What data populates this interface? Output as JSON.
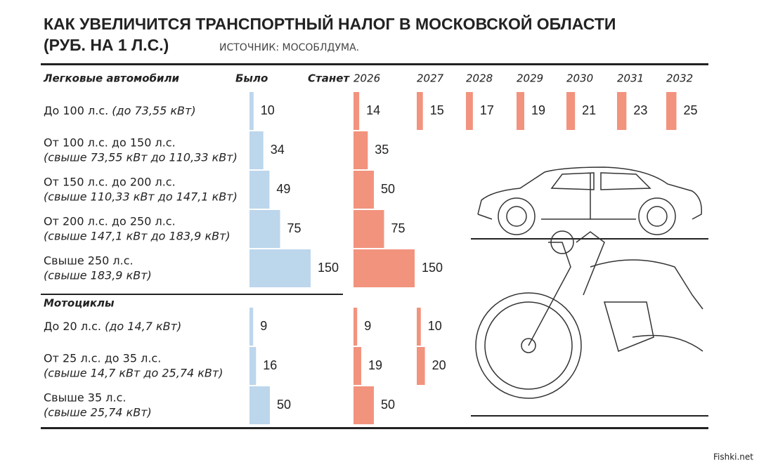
{
  "title": "КАК УВЕЛИЧИТСЯ ТРАНСПОРТНЫЙ НАЛОГ В МОСКОВСКОЙ ОБЛАСТИ",
  "subtitle": "(РУБ. НА 1 Л.С.)",
  "source": "ИСТОЧНИК: МОСОБЛДУМА.",
  "was_label": "Было",
  "will_label": "Станет",
  "years": [
    "2026",
    "2027",
    "2028",
    "2029",
    "2030",
    "2031",
    "2032"
  ],
  "groups": [
    {
      "name": "Легковые автомобили",
      "rows": [
        {
          "label": "До 100 л.с.",
          "sublabel": "(до 73,55 кВт)",
          "was": 10,
          "values": [
            14,
            15,
            17,
            19,
            21,
            23,
            25
          ]
        },
        {
          "label": "От 100 л.с. до 150 л.с.",
          "sublabel": "(свыше 73,55 кВт до 110,33 кВт)",
          "was": 34,
          "values": [
            35
          ]
        },
        {
          "label": "От 150 л.с. до 200 л.с.",
          "sublabel": "(свыше 110,33 кВт до 147,1 кВт)",
          "was": 49,
          "values": [
            50
          ]
        },
        {
          "label": "От 200 л.с. до 250 л.с.",
          "sublabel": "(свыше 147,1 кВт до 183,9 кВт)",
          "was": 75,
          "values": [
            75
          ]
        },
        {
          "label": "Свыше 250 л.с.",
          "sublabel": "(свыше 183,9 кВт)",
          "was": 150,
          "values": [
            150
          ]
        }
      ]
    },
    {
      "name": "Мотоциклы",
      "rows": [
        {
          "label": "До 20 л.с.",
          "sublabel": "(до 14,7 кВт)",
          "was": 9,
          "values": [
            9,
            10
          ]
        },
        {
          "label": "От 25 л.с. до 35 л.с.",
          "sublabel": "(свыше 14,7 кВт до 25,74 кВт)",
          "was": 16,
          "values": [
            19,
            20
          ]
        },
        {
          "label": "Свыше 35 л.с.",
          "sublabel": "(свыше 25,74 кВт)",
          "was": 50,
          "values": [
            50
          ]
        }
      ]
    }
  ],
  "watermark": "Fishki.net"
}
